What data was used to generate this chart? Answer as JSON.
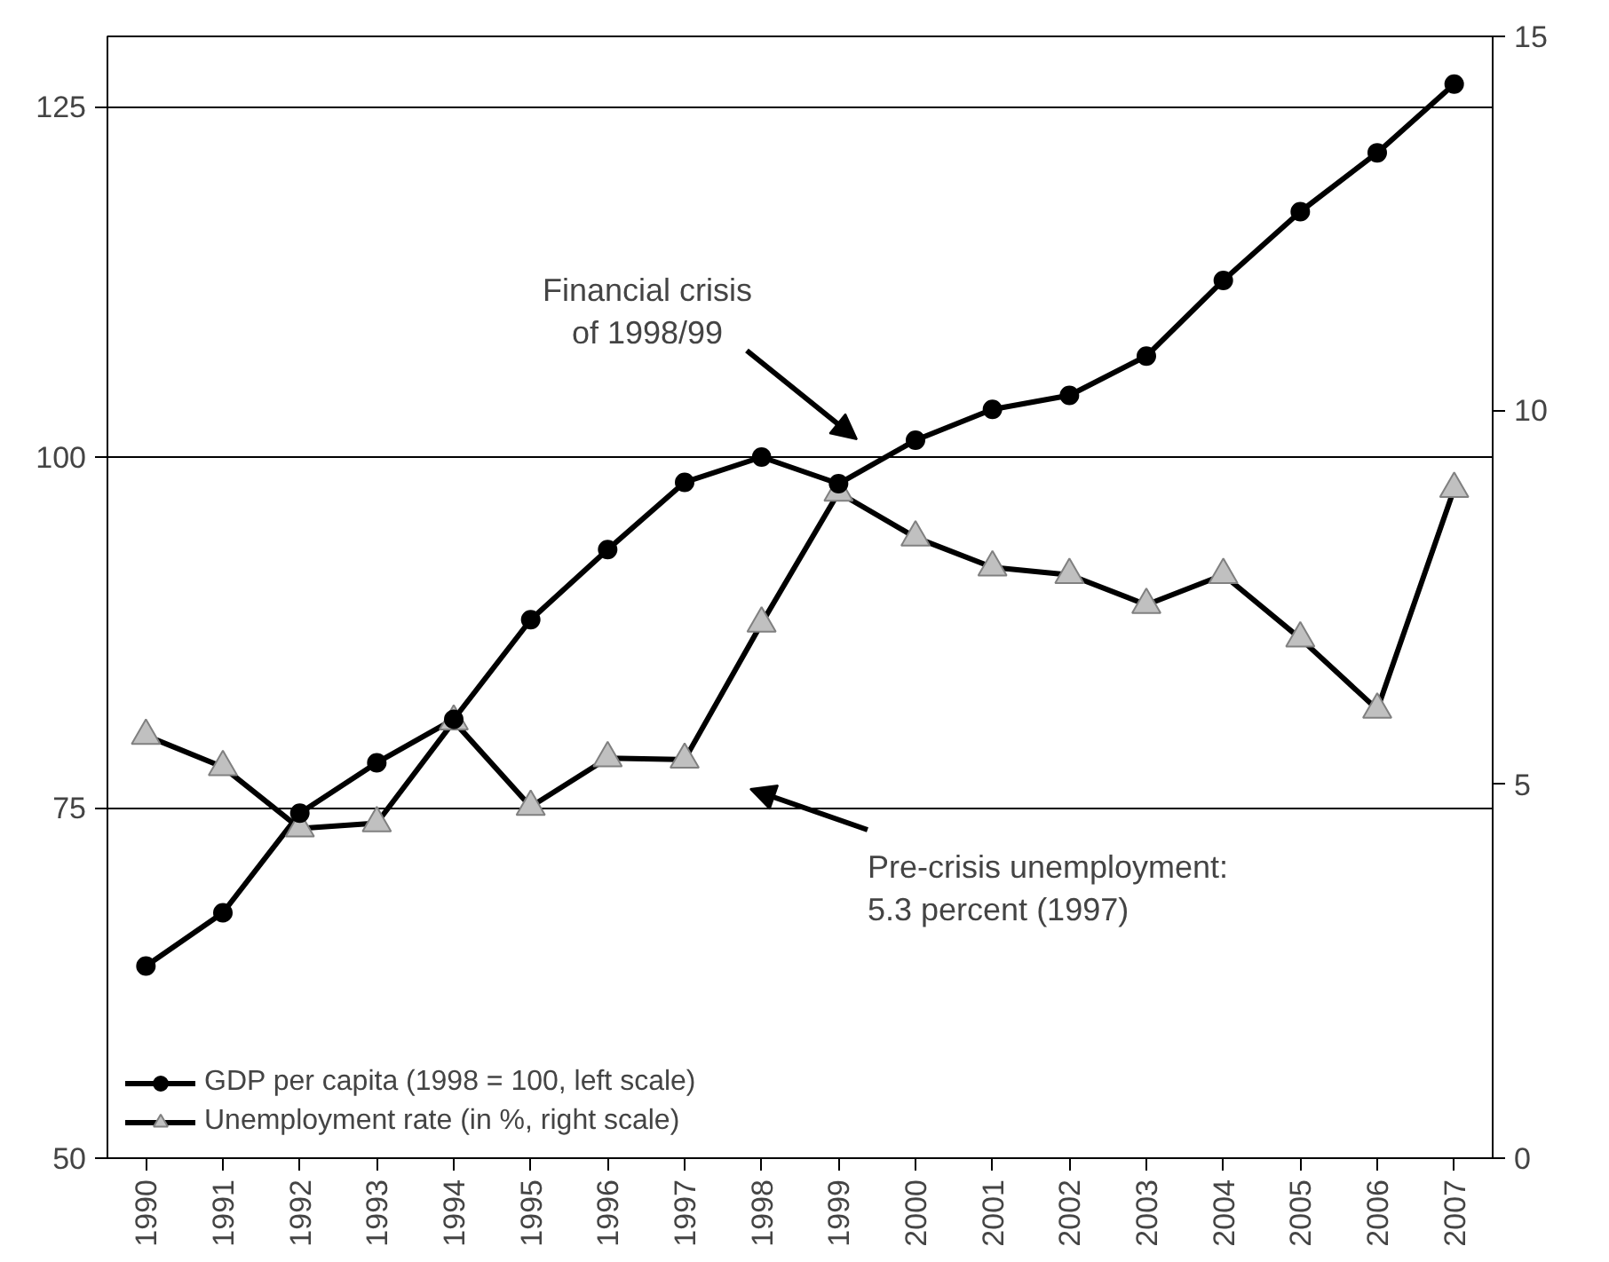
{
  "chart_data": {
    "type": "line",
    "categories": [
      "1990",
      "1991",
      "1992",
      "1993",
      "1994",
      "1995",
      "1996",
      "1997",
      "1998",
      "1999",
      "2000",
      "2001",
      "2002",
      "2003",
      "2004",
      "2005",
      "2006",
      "2007"
    ],
    "series": [
      {
        "name": "GDP per capita (1998 = 100, left scale)",
        "color": "#000000",
        "marker": "circle",
        "values": [
          63.7,
          67.5,
          74.6,
          78.2,
          81.3,
          88.4,
          93.4,
          98.2,
          100,
          98.1,
          101.2,
          103.4,
          104.4,
          107.2,
          112.6,
          117.5,
          121.7,
          126.6
        ]
      },
      {
        "name": "Unemployment rate (in %, right scale)",
        "color": "#000000",
        "marker": "triangle",
        "axis": "y2",
        "values": [
          5.65,
          5.23,
          4.41,
          4.48,
          5.84,
          4.7,
          5.35,
          5.33,
          7.15,
          8.9,
          8.3,
          7.9,
          7.8,
          7.4,
          7.8,
          6.95,
          6.0,
          8.95
        ]
      }
    ],
    "ylim": [
      50,
      130
    ],
    "yticks": [
      50,
      75,
      100,
      125
    ],
    "y2lim": [
      0,
      15
    ],
    "y2ticks": [
      0,
      5,
      10,
      15
    ],
    "grid": "y",
    "legend": "bottom left",
    "annotations": [
      "Financial crisis\nof 1998/99",
      "Pre-crisis unemployment:\n5.3 percent (1997)"
    ]
  }
}
